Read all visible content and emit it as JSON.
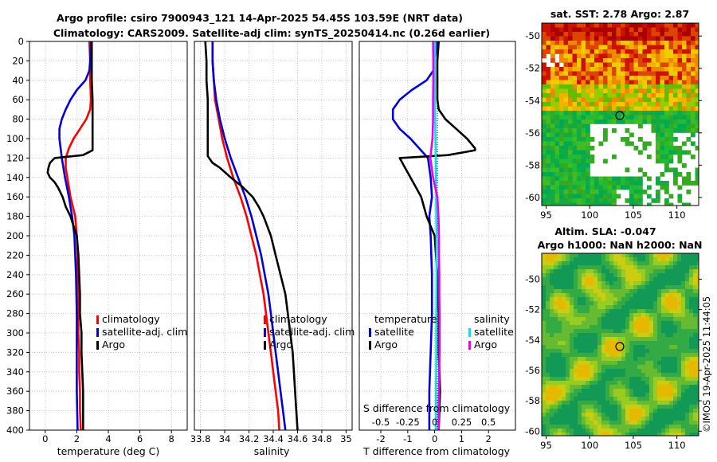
{
  "title": {
    "line1": "Argo profile: csiro 7900943_121 14-Apr-2025 54.45S 103.59E (NRT data)",
    "line2": "Climatology: CARS2009. Satellite-adj clim: synTS_20250414.nc (0.26d earlier)"
  },
  "watermark": "©IMOS 19-Apr-2025 11:44:05",
  "colors": {
    "climatology": "#ff0000",
    "satellite": "#0000dd",
    "argo": "#000000",
    "sat_salinity": "#00e5ee",
    "clim_salinity": "#ee00ee"
  },
  "depth_ticks": [
    "0",
    "20",
    "40",
    "60",
    "80",
    "100",
    "120",
    "140",
    "160",
    "180",
    "200",
    "220",
    "240",
    "260",
    "280",
    "300",
    "320",
    "340",
    "360",
    "380",
    "400"
  ],
  "chart_data": [
    {
      "type": "line",
      "name": "temperature-profile",
      "xlabel": "temperature (deg C)",
      "ylabel": "depth",
      "xlim": [
        -1,
        9
      ],
      "ylim": [
        400,
        0
      ],
      "xticks": [
        0,
        2,
        4,
        6,
        8
      ],
      "xtick_labels": [
        "0",
        "2",
        "4",
        "6",
        "8"
      ],
      "legend": [
        "climatology",
        "satellite-adj. clim",
        "Argo"
      ],
      "series": [
        {
          "name": "climatology",
          "color": "#ff0000",
          "depth": [
            0,
            20,
            40,
            60,
            70,
            80,
            90,
            100,
            110,
            120,
            130,
            140,
            160,
            180,
            200,
            220,
            240,
            260,
            280,
            300,
            320,
            340,
            360,
            380,
            400
          ],
          "values": [
            2.8,
            2.85,
            2.85,
            2.9,
            2.85,
            2.6,
            2.2,
            1.8,
            1.5,
            1.3,
            1.3,
            1.4,
            1.6,
            1.9,
            2.0,
            2.05,
            2.05,
            2.1,
            2.1,
            2.1,
            2.15,
            2.15,
            2.2,
            2.2,
            2.25
          ]
        },
        {
          "name": "satellite-adj. clim",
          "color": "#0000dd",
          "depth": [
            0,
            20,
            30,
            40,
            50,
            60,
            70,
            80,
            90,
            100,
            120,
            140,
            160,
            180,
            200,
            240,
            280,
            320,
            360,
            400
          ],
          "values": [
            2.9,
            2.85,
            2.8,
            2.55,
            2.0,
            1.6,
            1.3,
            1.05,
            0.9,
            0.9,
            1.05,
            1.25,
            1.5,
            1.7,
            1.85,
            1.95,
            2.0,
            2.0,
            2.0,
            2.05
          ]
        },
        {
          "name": "Argo",
          "color": "#000000",
          "depth": [
            0,
            20,
            40,
            60,
            80,
            100,
            112,
            117,
            120,
            125,
            130,
            135,
            140,
            145,
            150,
            160,
            170,
            180,
            190,
            200,
            220,
            240,
            260,
            280,
            300,
            320,
            340,
            360,
            380,
            400
          ],
          "values": [
            2.95,
            2.95,
            2.95,
            3.0,
            3.0,
            3.0,
            3.0,
            2.4,
            0.6,
            0.3,
            0.2,
            0.15,
            0.3,
            0.6,
            0.8,
            1.1,
            1.3,
            1.6,
            1.8,
            2.0,
            2.1,
            2.15,
            2.2,
            2.2,
            2.3,
            2.3,
            2.35,
            2.4,
            2.4,
            2.4
          ]
        }
      ]
    },
    {
      "type": "line",
      "name": "salinity-profile",
      "xlabel": "salinity",
      "ylabel": "depth",
      "xlim": [
        33.75,
        35.05
      ],
      "ylim": [
        400,
        0
      ],
      "xticks": [
        33.8,
        34,
        34.2,
        34.4,
        34.6,
        34.8,
        35
      ],
      "xtick_labels": [
        "33.8",
        "34",
        "34.2",
        "34.4",
        "34.6",
        "34.8",
        "35"
      ],
      "legend": [
        "climatology",
        "satellite-adj. clim",
        "Argo"
      ],
      "series": [
        {
          "name": "climatology",
          "color": "#ff0000",
          "depth": [
            0,
            20,
            40,
            60,
            80,
            100,
            120,
            140,
            160,
            180,
            200,
            220,
            240,
            260,
            280,
            300,
            320,
            340,
            360,
            380,
            400
          ],
          "values": [
            33.9,
            33.9,
            33.91,
            33.92,
            33.95,
            33.98,
            34.02,
            34.07,
            34.13,
            34.18,
            34.22,
            34.26,
            34.29,
            34.32,
            34.34,
            34.36,
            34.38,
            34.4,
            34.42,
            34.44,
            34.45
          ]
        },
        {
          "name": "satellite-adj. clim",
          "color": "#0000dd",
          "depth": [
            0,
            20,
            40,
            60,
            80,
            100,
            120,
            140,
            160,
            180,
            200,
            220,
            240,
            260,
            280,
            300,
            320,
            340,
            360,
            380,
            400
          ],
          "values": [
            33.9,
            33.9,
            33.91,
            33.93,
            33.96,
            34.0,
            34.05,
            34.11,
            34.17,
            34.22,
            34.26,
            34.3,
            34.33,
            34.36,
            34.38,
            34.4,
            34.42,
            34.44,
            34.46,
            34.48,
            34.5
          ]
        },
        {
          "name": "Argo",
          "color": "#000000",
          "depth": [
            0,
            20,
            40,
            60,
            80,
            100,
            118,
            125,
            130,
            140,
            150,
            160,
            170,
            180,
            200,
            220,
            240,
            260,
            280,
            300,
            320,
            340,
            360,
            380,
            400
          ],
          "values": [
            33.84,
            33.85,
            33.85,
            33.86,
            33.86,
            33.86,
            33.86,
            33.9,
            33.96,
            34.05,
            34.15,
            34.23,
            34.28,
            34.32,
            34.38,
            34.42,
            34.46,
            34.5,
            34.52,
            34.54,
            34.56,
            34.57,
            34.58,
            34.59,
            34.6
          ]
        }
      ]
    },
    {
      "type": "line",
      "name": "difference-profile",
      "xlabel": "T difference from climatology",
      "xlabel_top": "S difference from climatology",
      "xlim": [
        -2.8,
        3.0
      ],
      "ylim": [
        400,
        0
      ],
      "xticks": [
        -2,
        -1,
        0,
        1,
        2
      ],
      "xtick_labels": [
        "-2",
        "-1",
        "0",
        "1",
        "2"
      ],
      "sticks": [
        -0.5,
        -0.25,
        0,
        0.25,
        0.5
      ],
      "stick_labels": [
        "-0.5",
        "-0.25",
        "0",
        "0.25",
        "0.5"
      ],
      "legend_temperature": {
        "title": "temperature",
        "items": [
          "satellite",
          "Argo"
        ]
      },
      "legend_salinity": {
        "title": "salinity",
        "items": [
          "satellite",
          "Argo"
        ]
      },
      "series": [
        {
          "name": "temperature satellite",
          "color": "#0000dd",
          "depth": [
            0,
            20,
            30,
            40,
            50,
            60,
            70,
            80,
            90,
            100,
            120,
            140,
            160,
            180,
            200,
            240,
            280,
            320,
            360,
            400
          ],
          "values": [
            0.1,
            0.0,
            -0.05,
            -0.3,
            -0.85,
            -1.3,
            -1.55,
            -1.55,
            -1.3,
            -0.9,
            -0.25,
            -0.15,
            -0.1,
            -0.2,
            -0.15,
            -0.1,
            -0.1,
            -0.15,
            -0.2,
            -0.2
          ]
        },
        {
          "name": "temperature Argo",
          "color": "#000000",
          "depth": [
            0,
            20,
            40,
            60,
            70,
            80,
            90,
            100,
            110,
            112,
            117,
            120,
            125,
            130,
            140,
            150,
            160,
            180,
            200,
            240,
            280,
            320,
            360,
            400
          ],
          "values": [
            0.15,
            0.1,
            0.1,
            0.1,
            0.15,
            0.4,
            0.8,
            1.2,
            1.5,
            1.5,
            0.5,
            -1.3,
            -1.2,
            -1.1,
            -0.9,
            -0.7,
            -0.5,
            -0.3,
            0.0,
            0.1,
            0.15,
            0.15,
            0.2,
            0.15
          ]
        },
        {
          "name": "salinity satellite",
          "color": "#00e5ee",
          "depth": [
            0,
            20,
            40,
            60,
            80,
            100,
            140,
            180,
            200,
            240,
            280,
            320,
            360,
            400
          ],
          "values": [
            0.02,
            0.01,
            0.01,
            0.01,
            0.02,
            0.03,
            0.05,
            0.06,
            0.07,
            0.07,
            0.06,
            0.06,
            0.05,
            0.05
          ]
        },
        {
          "name": "salinity Argo",
          "color": "#ee00ee",
          "depth": [
            0,
            20,
            40,
            60,
            80,
            100,
            120,
            140,
            160,
            180,
            200,
            220,
            240,
            260,
            280,
            300,
            320,
            340,
            360,
            380,
            400
          ],
          "values": [
            -0.06,
            -0.05,
            -0.05,
            -0.06,
            -0.06,
            -0.08,
            -0.16,
            -0.06,
            0.1,
            0.14,
            0.16,
            0.16,
            0.17,
            0.17,
            0.18,
            0.18,
            0.18,
            0.17,
            0.16,
            0.15,
            0.15
          ]
        }
      ]
    },
    {
      "type": "heatmap",
      "name": "sat-sst-map",
      "title": "sat. SST: 2.78 Argo: 2.87",
      "xlim": [
        94.5,
        112.5
      ],
      "ylim": [
        -60.5,
        -49.2
      ],
      "xticks": [
        95,
        100,
        105,
        110
      ],
      "xtick_labels": [
        "95",
        "100",
        "105",
        "110"
      ],
      "yticks": [
        -50,
        -52,
        -54,
        -56,
        -58,
        -60
      ],
      "ytick_labels": [
        "-50",
        "-52",
        "-54",
        "-56",
        "-58",
        "-60"
      ],
      "marker": [
        103.6,
        -54.45
      ]
    },
    {
      "type": "heatmap",
      "name": "altimetry-map",
      "title_line1": "Altim. SLA: -0.047",
      "title_line2": "Argo h1000: NaN h2000: NaN",
      "xlim": [
        94.5,
        112.5
      ],
      "ylim": [
        -60.3,
        -48.3
      ],
      "xticks": [
        95,
        100,
        105,
        110
      ],
      "xtick_labels": [
        "95",
        "100",
        "105",
        "110"
      ],
      "yticks": [
        -50,
        -52,
        -54,
        -56,
        -58,
        -60
      ],
      "ytick_labels": [
        "-50",
        "-52",
        "-54",
        "-56",
        "-58",
        "-60"
      ],
      "marker": [
        103.6,
        -54.45
      ]
    }
  ]
}
